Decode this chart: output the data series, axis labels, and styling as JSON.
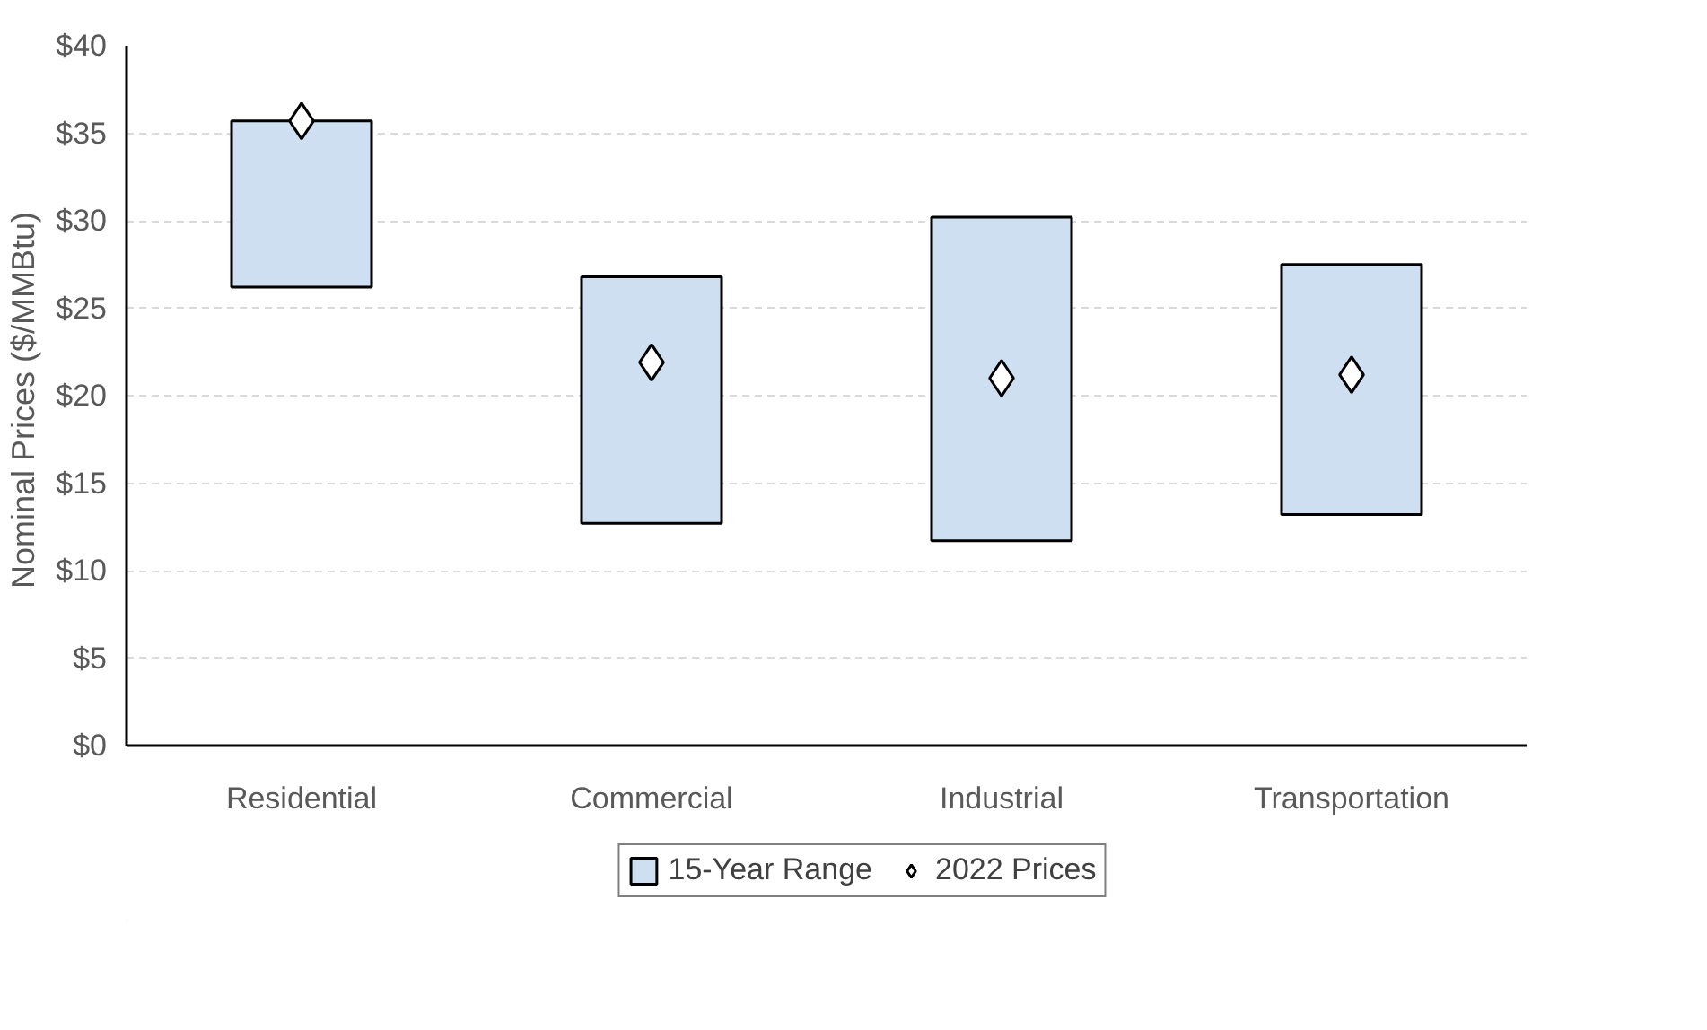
{
  "chart_data": {
    "type": "bar",
    "ylabel": "Nominal  Prices ($/MMBtu)",
    "categories": [
      "Residential",
      "Commercial",
      "Industrial",
      "Transportation"
    ],
    "series": [
      {
        "name": "15-Year Range",
        "color": "#cddff0",
        "base": [
          26.2,
          12.7,
          11.7,
          13.2
        ],
        "values": [
          9.5,
          14.1,
          18.5,
          14.3
        ]
      },
      {
        "name": "2022 Prices",
        "type": "scatter",
        "color": "#000000",
        "x": [
          "Residential",
          "Commercial",
          "Industrial",
          "Transportation"
        ],
        "values": [
          35.7,
          21.9,
          21.0,
          21.2
        ]
      }
    ],
    "marker": "diamond",
    "ylim": [
      0,
      40
    ],
    "yticks": [
      {
        "value": 0,
        "label": "$0"
      },
      {
        "value": 5,
        "label": "$5"
      },
      {
        "value": 10,
        "label": "$10"
      },
      {
        "value": 15,
        "label": "$15"
      },
      {
        "value": 20,
        "label": "$20"
      },
      {
        "value": 25,
        "label": "$25"
      },
      {
        "value": 30,
        "label": "$30"
      },
      {
        "value": 35,
        "label": "$35"
      },
      {
        "value": 40,
        "label": "$40"
      }
    ],
    "grid": "y",
    "legend": "bottom"
  }
}
